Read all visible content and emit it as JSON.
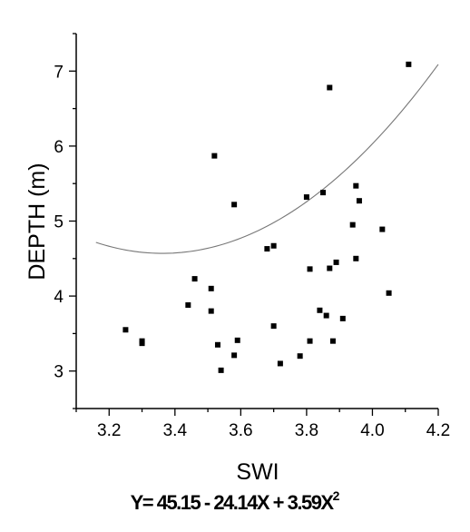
{
  "chart_data": {
    "type": "scatter",
    "title": "",
    "xlabel": "SWI",
    "ylabel": "DEPTH  (m)",
    "xlim": [
      3.1,
      4.2
    ],
    "ylim": [
      2.5,
      7.5
    ],
    "x_ticks": [
      "3.2",
      "3.4",
      "3.6",
      "3.8",
      "4.0",
      "4.2"
    ],
    "y_ticks": [
      "3",
      "4",
      "5",
      "6",
      "7"
    ],
    "grid": false,
    "legend": "none",
    "marker_color": "#000000",
    "fit_line_color": "#777777",
    "points": [
      {
        "x": 3.25,
        "y": 3.55
      },
      {
        "x": 3.3,
        "y": 3.4
      },
      {
        "x": 3.3,
        "y": 3.37
      },
      {
        "x": 3.44,
        "y": 3.88
      },
      {
        "x": 3.46,
        "y": 4.23
      },
      {
        "x": 3.51,
        "y": 4.1
      },
      {
        "x": 3.51,
        "y": 3.8
      },
      {
        "x": 3.52,
        "y": 5.87
      },
      {
        "x": 3.53,
        "y": 3.35
      },
      {
        "x": 3.54,
        "y": 3.01
      },
      {
        "x": 3.58,
        "y": 5.22
      },
      {
        "x": 3.58,
        "y": 3.21
      },
      {
        "x": 3.59,
        "y": 3.41
      },
      {
        "x": 3.68,
        "y": 4.63
      },
      {
        "x": 3.7,
        "y": 4.67
      },
      {
        "x": 3.7,
        "y": 3.6
      },
      {
        "x": 3.72,
        "y": 3.1
      },
      {
        "x": 3.78,
        "y": 3.2
      },
      {
        "x": 3.8,
        "y": 5.32
      },
      {
        "x": 3.81,
        "y": 3.4
      },
      {
        "x": 3.81,
        "y": 4.36
      },
      {
        "x": 3.84,
        "y": 3.81
      },
      {
        "x": 3.85,
        "y": 5.38
      },
      {
        "x": 3.86,
        "y": 3.74
      },
      {
        "x": 3.87,
        "y": 6.78
      },
      {
        "x": 3.87,
        "y": 4.37
      },
      {
        "x": 3.88,
        "y": 3.4
      },
      {
        "x": 3.89,
        "y": 4.45
      },
      {
        "x": 3.91,
        "y": 3.7
      },
      {
        "x": 3.94,
        "y": 4.95
      },
      {
        "x": 3.95,
        "y": 5.47
      },
      {
        "x": 3.95,
        "y": 4.5
      },
      {
        "x": 3.96,
        "y": 5.27
      },
      {
        "x": 4.03,
        "y": 4.89
      },
      {
        "x": 4.05,
        "y": 4.04
      },
      {
        "x": 4.11,
        "y": 7.09
      }
    ],
    "fit": {
      "equation_prefix": "Y= 45.15 - 24.14X + 3.59X",
      "equation_exponent": "2",
      "coefficients": [
        45.15,
        -24.14,
        3.59
      ],
      "x_range": [
        3.16,
        4.2
      ]
    }
  }
}
